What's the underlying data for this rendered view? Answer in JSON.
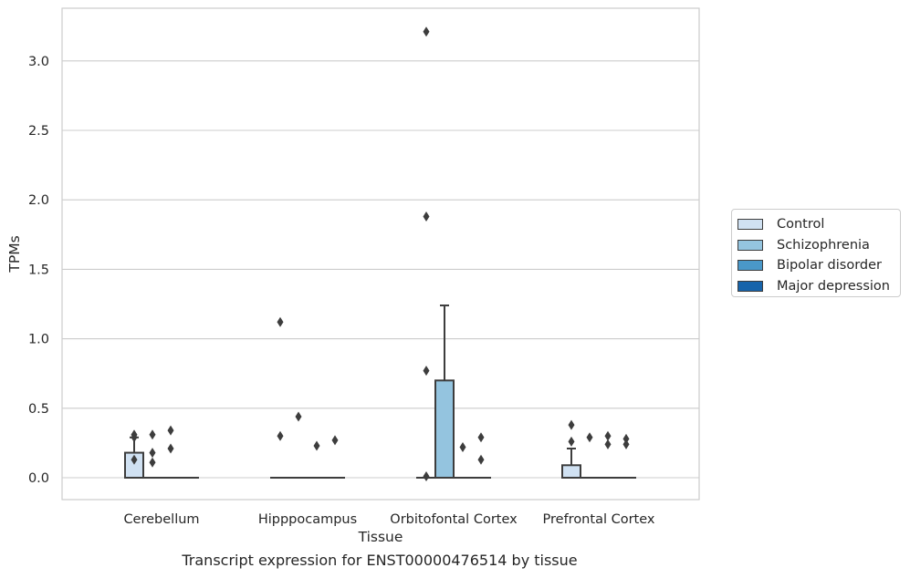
{
  "chart_data": {
    "type": "box",
    "title": "",
    "xlabel": "Tissue",
    "ylabel": "TPMs",
    "ylim": [
      -0.16,
      3.38
    ],
    "yticks": [
      0.0,
      0.5,
      1.0,
      1.5,
      2.0,
      2.5,
      3.0
    ],
    "ytick_labels": [
      "0.0",
      "0.5",
      "1.0",
      "1.5",
      "2.0",
      "2.5",
      "3.0"
    ],
    "categories": [
      "Cerebellum",
      "Hipppocampus",
      "Orbitofontal Cortex",
      "Prefrontal Cortex"
    ],
    "grid": "horizontal",
    "legend_position": "right",
    "series": [
      {
        "name": "Control",
        "color": "#d0e1f2",
        "boxes": [
          {
            "category": "Cerebellum",
            "q1": 0.0,
            "median": 0.0,
            "q3": 0.18,
            "whisker_low": 0.0,
            "whisker_high": 0.29,
            "outliers": [
              0.13,
              0.29,
              0.31
            ]
          },
          {
            "category": "Hipppocampus",
            "q1": 0.0,
            "median": 0.0,
            "q3": 0.0,
            "whisker_low": 0.0,
            "whisker_high": 0.0,
            "outliers": [
              0.3,
              1.12
            ]
          },
          {
            "category": "Orbitofontal Cortex",
            "q1": 0.0,
            "median": 0.0,
            "q3": 0.0,
            "whisker_low": 0.0,
            "whisker_high": 0.0,
            "outliers": [
              0.01,
              0.77,
              1.88,
              3.21
            ]
          },
          {
            "category": "Prefrontal Cortex",
            "q1": 0.0,
            "median": 0.0,
            "q3": 0.09,
            "whisker_low": 0.0,
            "whisker_high": 0.21,
            "outliers": [
              0.26,
              0.38
            ]
          }
        ]
      },
      {
        "name": "Schizophrenia",
        "color": "#94c4df",
        "boxes": [
          {
            "category": "Cerebellum",
            "q1": 0.0,
            "median": 0.0,
            "q3": 0.0,
            "whisker_low": 0.0,
            "whisker_high": 0.0,
            "outliers": [
              0.11,
              0.18,
              0.31
            ]
          },
          {
            "category": "Hipppocampus",
            "q1": 0.0,
            "median": 0.0,
            "q3": 0.0,
            "whisker_low": 0.0,
            "whisker_high": 0.0,
            "outliers": [
              0.44
            ]
          },
          {
            "category": "Orbitofontal Cortex",
            "q1": 0.0,
            "median": 0.0,
            "q3": 0.7,
            "whisker_low": 0.0,
            "whisker_high": 1.24,
            "outliers": []
          },
          {
            "category": "Prefrontal Cortex",
            "q1": 0.0,
            "median": 0.0,
            "q3": 0.0,
            "whisker_low": 0.0,
            "whisker_high": 0.0,
            "outliers": [
              0.29
            ]
          }
        ]
      },
      {
        "name": "Bipolar disorder",
        "color": "#4a98c9",
        "boxes": [
          {
            "category": "Cerebellum",
            "q1": 0.0,
            "median": 0.0,
            "q3": 0.0,
            "whisker_low": 0.0,
            "whisker_high": 0.0,
            "outliers": [
              0.21,
              0.34
            ]
          },
          {
            "category": "Hipppocampus",
            "q1": 0.0,
            "median": 0.0,
            "q3": 0.0,
            "whisker_low": 0.0,
            "whisker_high": 0.0,
            "outliers": [
              0.23
            ]
          },
          {
            "category": "Orbitofontal Cortex",
            "q1": 0.0,
            "median": 0.0,
            "q3": 0.0,
            "whisker_low": 0.0,
            "whisker_high": 0.0,
            "outliers": [
              0.22
            ]
          },
          {
            "category": "Prefrontal Cortex",
            "q1": 0.0,
            "median": 0.0,
            "q3": 0.0,
            "whisker_low": 0.0,
            "whisker_high": 0.0,
            "outliers": [
              0.24,
              0.3
            ]
          }
        ]
      },
      {
        "name": "Major depression",
        "color": "#1764ab",
        "boxes": [
          {
            "category": "Cerebellum",
            "q1": 0.0,
            "median": 0.0,
            "q3": 0.0,
            "whisker_low": 0.0,
            "whisker_high": 0.0,
            "outliers": []
          },
          {
            "category": "Hipppocampus",
            "q1": 0.0,
            "median": 0.0,
            "q3": 0.0,
            "whisker_low": 0.0,
            "whisker_high": 0.0,
            "outliers": [
              0.27
            ]
          },
          {
            "category": "Orbitofontal Cortex",
            "q1": 0.0,
            "median": 0.0,
            "q3": 0.0,
            "whisker_low": 0.0,
            "whisker_high": 0.0,
            "outliers": [
              0.13,
              0.29
            ]
          },
          {
            "category": "Prefrontal Cortex",
            "q1": 0.0,
            "median": 0.0,
            "q3": 0.0,
            "whisker_low": 0.0,
            "whisker_high": 0.0,
            "outliers": [
              0.24,
              0.28
            ]
          }
        ]
      }
    ]
  },
  "caption": "Transcript expression for ENST00000476514 by tissue",
  "colors": {
    "axes_edge": "#cccccc",
    "grid": "#cccccc",
    "box_edge": "#3d3d3d",
    "outlier": "#3d3d3d"
  }
}
